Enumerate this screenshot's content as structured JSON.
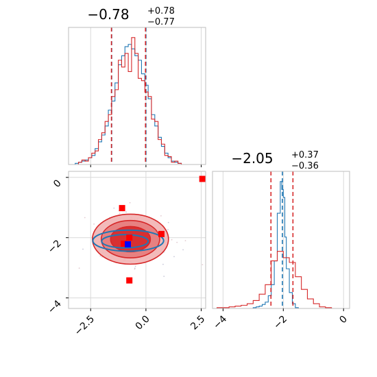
{
  "chart_data": [
    {
      "panel": "marginal-param-1",
      "type": "histogram",
      "title": {
        "main": "−0.78",
        "sup": "+0.78",
        "sub": "−0.77"
      },
      "xlim": [
        -3.5,
        2.7
      ],
      "xticks": [
        -2.5,
        0.0,
        2.5
      ],
      "xtick_labels_shown": false,
      "quantile_lines": {
        "red": [
          -1.56,
          -0.02
        ],
        "blue": [
          -1.55,
          0.0
        ]
      },
      "series": [
        {
          "color": "#1f77b4",
          "bins": [
            -3.2,
            -3.05,
            -2.9,
            -2.75,
            -2.6,
            -2.45,
            -2.3,
            -2.15,
            -2.0,
            -1.85,
            -1.7,
            -1.55,
            -1.4,
            -1.25,
            -1.1,
            -0.95,
            -0.8,
            -0.65,
            -0.5,
            -0.35,
            -0.2,
            -0.05,
            0.1,
            0.25,
            0.4,
            0.55,
            0.7,
            0.85,
            1.0,
            1.15,
            1.3,
            1.45,
            1.6,
            1.75
          ],
          "heights": [
            1,
            2,
            3,
            4,
            6,
            8,
            14,
            20,
            26,
            34,
            48,
            56,
            72,
            88,
            96,
            104,
            106,
            102,
            96,
            92,
            80,
            70,
            58,
            44,
            34,
            24,
            16,
            10,
            6,
            3,
            2,
            1,
            0
          ]
        },
        {
          "color": "#d62728",
          "bins": [
            -3.2,
            -3.05,
            -2.9,
            -2.75,
            -2.6,
            -2.45,
            -2.3,
            -2.15,
            -2.0,
            -1.85,
            -1.7,
            -1.55,
            -1.4,
            -1.25,
            -1.1,
            -0.95,
            -0.8,
            -0.65,
            -0.5,
            -0.35,
            -0.2,
            -0.05,
            0.1,
            0.25,
            0.4,
            0.55,
            0.7,
            0.85,
            1.0,
            1.15,
            1.3,
            1.45,
            1.6,
            1.75
          ],
          "heights": [
            0,
            2,
            4,
            3,
            6,
            10,
            12,
            22,
            28,
            38,
            44,
            60,
            66,
            92,
            86,
            98,
            82,
            112,
            98,
            76,
            74,
            64,
            60,
            40,
            38,
            22,
            18,
            8,
            7,
            2,
            3,
            1,
            0
          ]
        }
      ]
    },
    {
      "panel": "marginal-param-2",
      "type": "histogram",
      "title": {
        "main": "−2.05",
        "sup": "+0.37",
        "sub": "−0.36"
      },
      "xlim": [
        -4.35,
        0.2
      ],
      "xticks": [
        -4,
        -2,
        0
      ],
      "xtick_labels": [
        "−4",
        "−2",
        "0"
      ],
      "quantile_lines": {
        "red": [
          -2.41,
          -1.68
        ],
        "blue": [
          -2.03
        ]
      },
      "series": [
        {
          "color": "#1f77b4",
          "bins": [
            -3.0,
            -2.9,
            -2.8,
            -2.7,
            -2.6,
            -2.5,
            -2.4,
            -2.3,
            -2.2,
            -2.1,
            -2.05,
            -2.0,
            -1.95,
            -1.9,
            -1.8,
            -1.7,
            -1.6,
            -1.5
          ],
          "heights": [
            1,
            2,
            3,
            5,
            8,
            16,
            30,
            60,
            120,
            160,
            150,
            140,
            90,
            50,
            20,
            6,
            1
          ]
        },
        {
          "color": "#d62728",
          "bins": [
            -4.2,
            -4.0,
            -3.8,
            -3.6,
            -3.4,
            -3.2,
            -3.0,
            -2.8,
            -2.6,
            -2.4,
            -2.2,
            -2.0,
            -1.8,
            -1.6,
            -1.4,
            -1.2,
            -1.0,
            -0.8,
            -0.6,
            -0.4
          ],
          "heights": [
            1,
            1,
            2,
            3,
            4,
            6,
            10,
            18,
            30,
            60,
            72,
            64,
            58,
            40,
            24,
            12,
            6,
            2,
            1
          ]
        }
      ]
    },
    {
      "panel": "joint-param-1-vs-param-2",
      "type": "scatter",
      "xlim": [
        -3.5,
        2.7
      ],
      "ylim": [
        -4.35,
        0.2
      ],
      "xticks": [
        -2.5,
        0.0,
        2.5
      ],
      "xtick_labels": [
        "−2.5",
        "0.0",
        "2.5"
      ],
      "yticks": [
        0,
        -2,
        -4
      ],
      "ytick_labels": [
        "0",
        "−2",
        "−4"
      ],
      "red_contours": [
        {
          "level": "outer",
          "cx": -0.7,
          "cy": -2.05,
          "rx": 1.72,
          "ry": 0.83,
          "fill": "#f2b3b3"
        },
        {
          "level": "middle",
          "cx": -0.7,
          "cy": -2.05,
          "rx": 1.32,
          "ry": 0.62,
          "fill": "#e67b7b"
        },
        {
          "level": "inner",
          "cx": -0.7,
          "cy": -2.05,
          "rx": 0.9,
          "ry": 0.42,
          "fill": "#d62728"
        }
      ],
      "blue_contours": [
        {
          "level": "outer",
          "cx": -0.8,
          "cy": -2.1,
          "rx": 1.6,
          "ry": 0.35
        },
        {
          "level": "inner",
          "cx": -0.95,
          "cy": -2.12,
          "rx": 1.05,
          "ry": 0.22
        }
      ],
      "red_points": [
        {
          "x": 2.55,
          "y": -0.05
        },
        {
          "x": -1.08,
          "y": -1.02
        },
        {
          "x": 0.7,
          "y": -1.88
        },
        {
          "x": -0.75,
          "y": -2.0
        },
        {
          "x": -1.0,
          "y": -2.2
        },
        {
          "x": -0.75,
          "y": -3.42
        }
      ],
      "blue_points": [
        {
          "x": -0.82,
          "y": -2.22
        }
      ]
    }
  ]
}
